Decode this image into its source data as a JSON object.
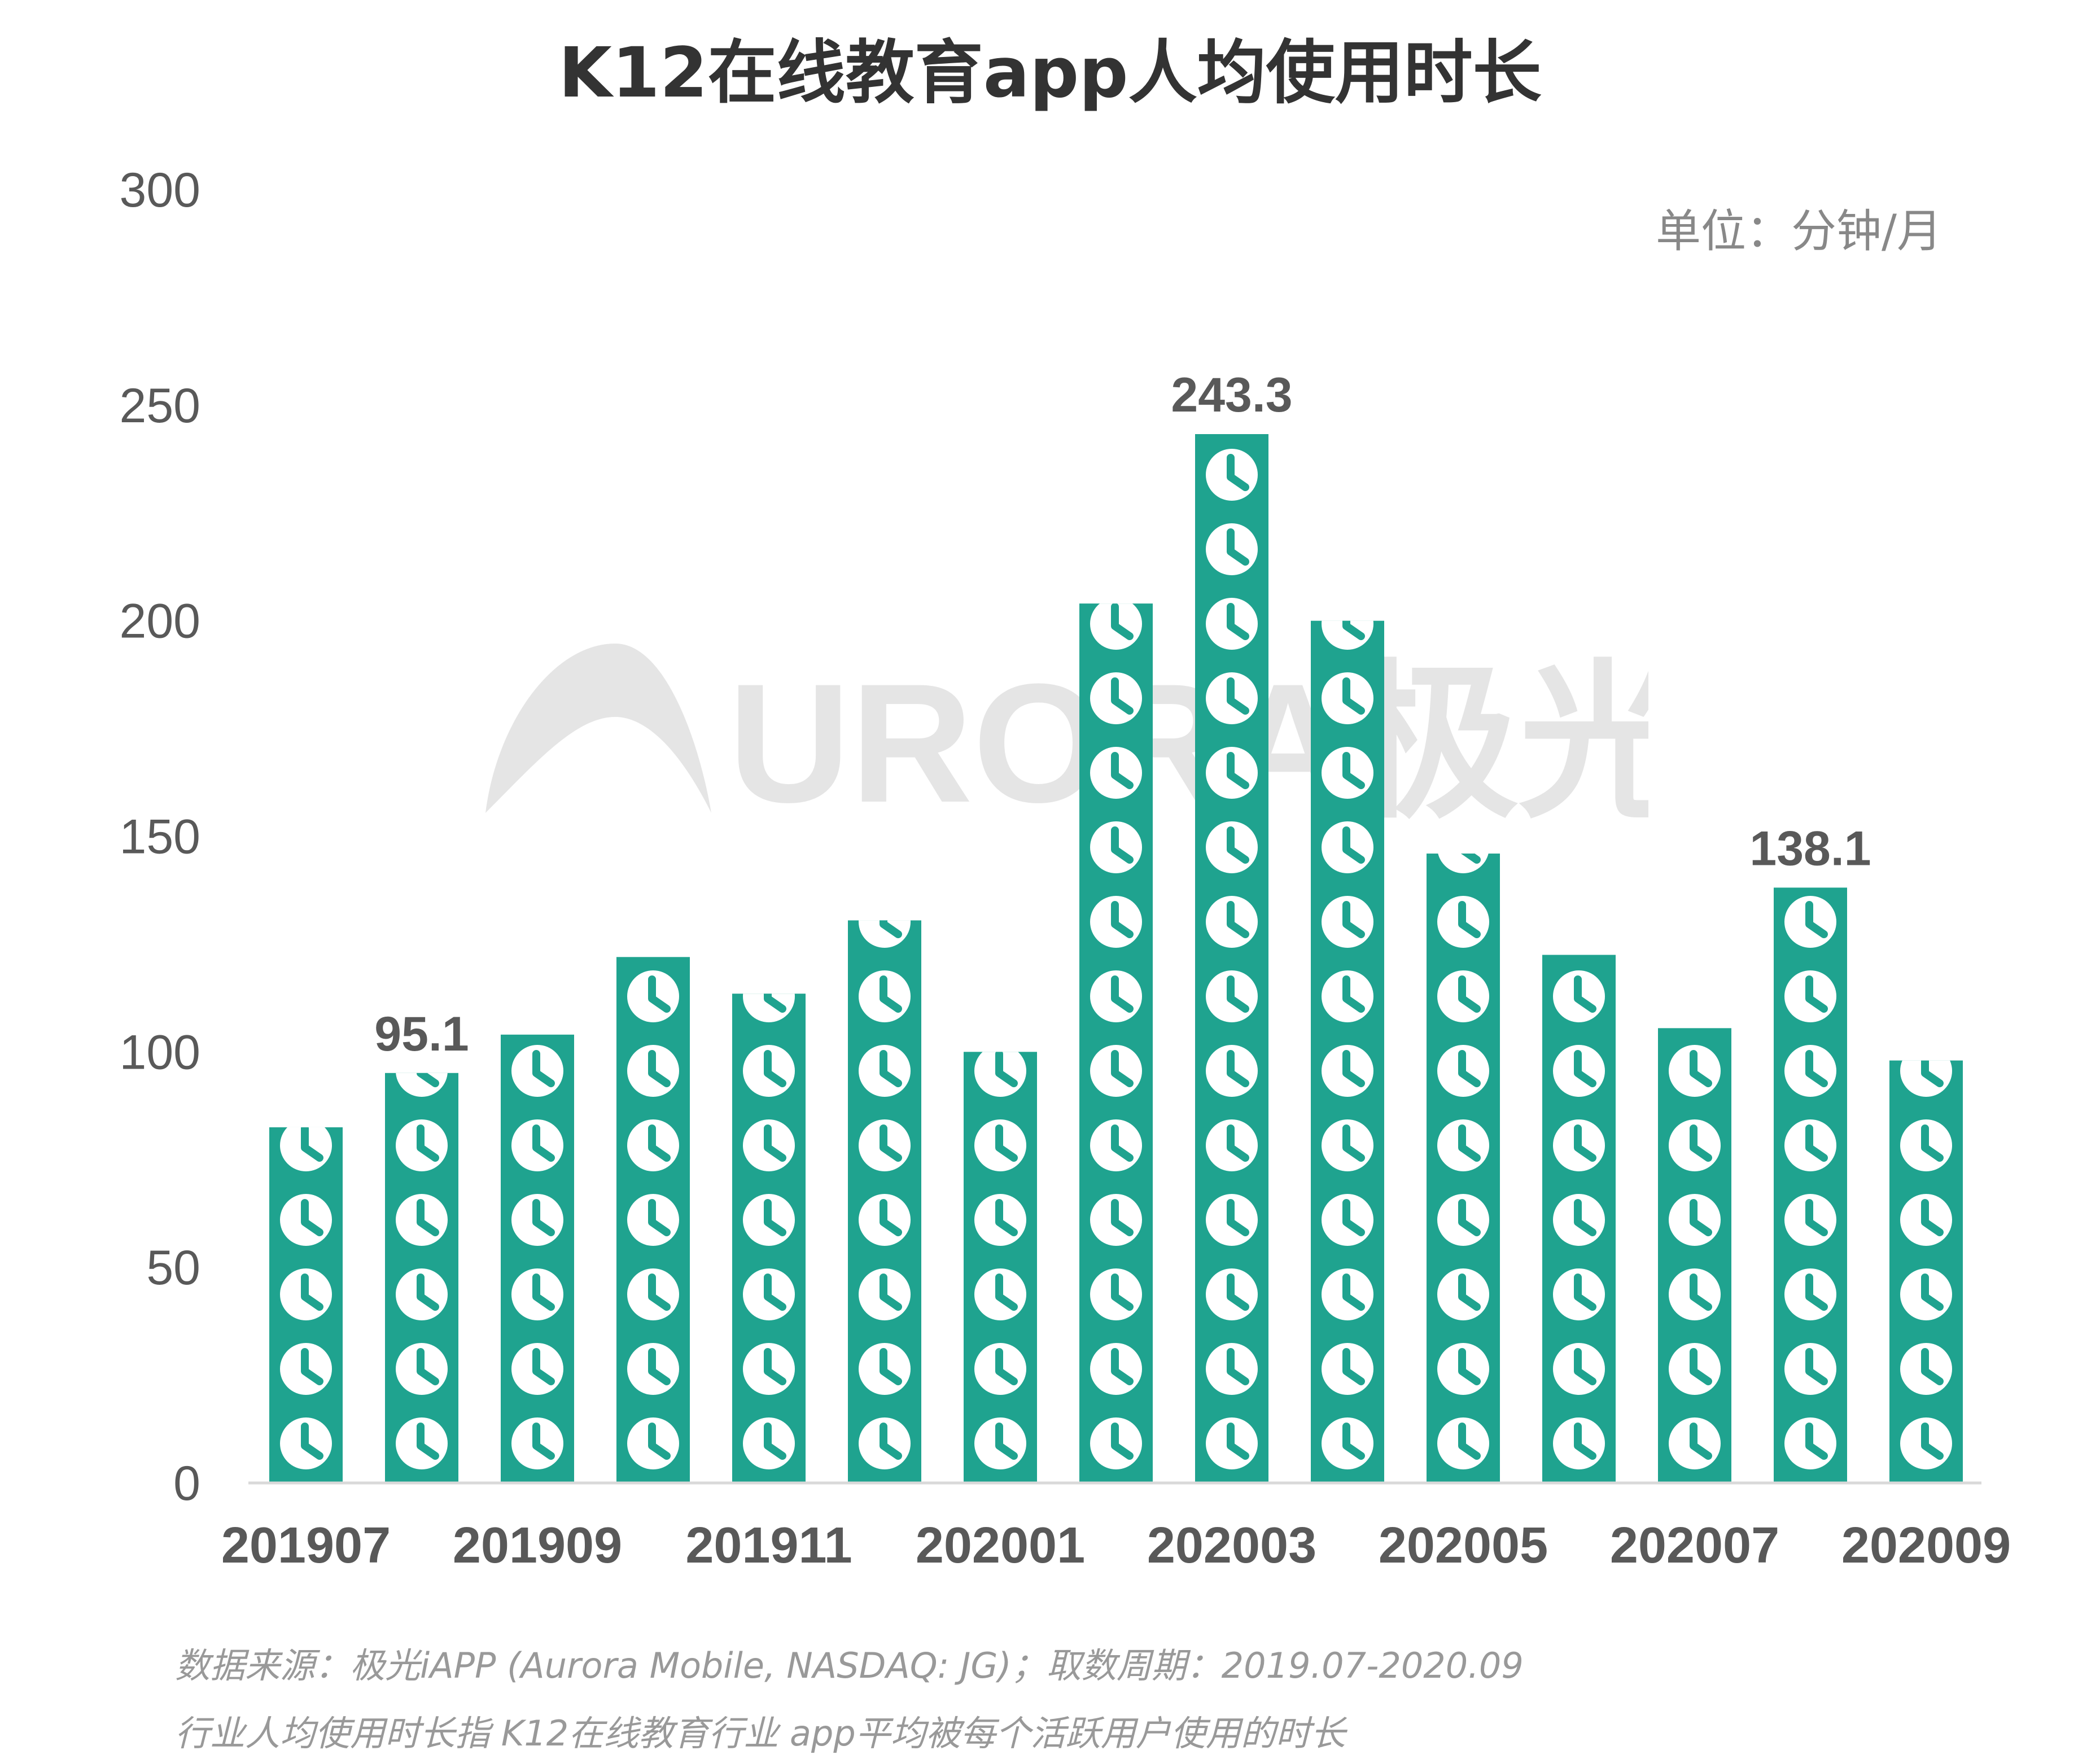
{
  "title": "K12在线教育app人均使用时长",
  "unit_label": "单位：分钟/月",
  "watermark_text": "URORA极光",
  "footnotes": {
    "source": "数据来源：极光iAPP (Aurora Mobile, NASDAQ: JG)；取数周期：2019.07-2020.09",
    "definition": "行业人均使用时长指 K12在线教育行业 app平均被每个活跃用户使用的时长"
  },
  "chart_data": {
    "type": "bar",
    "title": "K12在线教育app人均使用时长",
    "categories": [
      "201907",
      "201908",
      "201909",
      "201910",
      "201911",
      "201912",
      "202001",
      "202002",
      "202003",
      "202004",
      "202005",
      "202006",
      "202007",
      "202008",
      "202009"
    ],
    "x_tick_labels": [
      "201907",
      "",
      "201909",
      "",
      "201911",
      "",
      "202001",
      "",
      "202003",
      "",
      "202005",
      "",
      "202007",
      "",
      "202009"
    ],
    "values": [
      82.5,
      95.1,
      104,
      122,
      113.5,
      130.5,
      100,
      204,
      243.3,
      200,
      146,
      122.5,
      105.5,
      138.1,
      98
    ],
    "data_labels": [
      null,
      "95.1",
      null,
      null,
      null,
      null,
      null,
      null,
      "243.3",
      null,
      null,
      null,
      null,
      "138.1",
      null
    ],
    "ylim": [
      0,
      300
    ],
    "yticks": [
      0,
      50,
      100,
      150,
      200,
      250,
      300
    ],
    "unit": "分钟/月",
    "grid": false,
    "legend": "none",
    "bar_color": "#1FA38F",
    "bar_pattern": "clock-icon",
    "icon_color": "#ffffff"
  }
}
